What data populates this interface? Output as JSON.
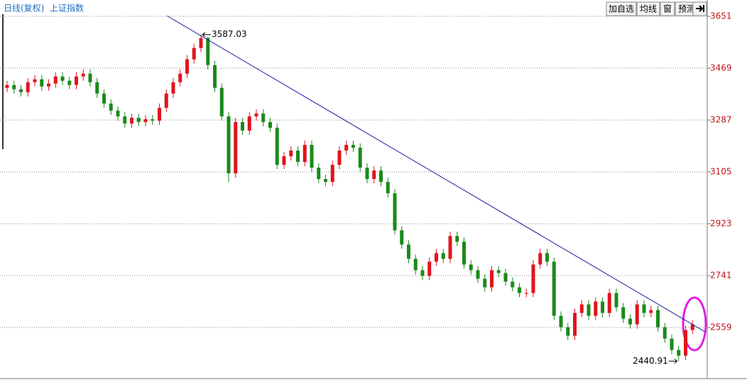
{
  "chart_data": {
    "type": "candlestick",
    "period": "日线(复权)",
    "title": "上证指数",
    "open": [
      3400,
      3410,
      3395,
      3385,
      3420,
      3430,
      3405,
      3415,
      3440,
      3425,
      3410,
      3440,
      3450,
      3420,
      3380,
      3345,
      3320,
      3300,
      3275,
      3295,
      3280,
      3290,
      3285,
      3330,
      3380,
      3420,
      3450,
      3500,
      3540,
      3575,
      3480,
      3400,
      3300,
      3100,
      3280,
      3250,
      3300,
      3310,
      3280,
      3260,
      3130,
      3160,
      3180,
      3140,
      3200,
      3120,
      3080,
      3070,
      3130,
      3180,
      3200,
      3190,
      3120,
      3080,
      3110,
      3070,
      3030,
      2900,
      2850,
      2800,
      2760,
      2740,
      2790,
      2820,
      2800,
      2880,
      2860,
      2780,
      2760,
      2730,
      2700,
      2760,
      2750,
      2720,
      2700,
      2680,
      2680,
      2780,
      2820,
      2790,
      2600,
      2560,
      2530,
      2610,
      2640,
      2600,
      2650,
      2610,
      2680,
      2630,
      2590,
      2570,
      2640,
      2610,
      2620,
      2560,
      2520,
      2480,
      2460,
      2550
    ],
    "high": [
      3425,
      3425,
      3410,
      3435,
      3445,
      3445,
      3430,
      3455,
      3455,
      3440,
      3455,
      3465,
      3465,
      3435,
      3395,
      3360,
      3335,
      3315,
      3310,
      3310,
      3305,
      3305,
      3345,
      3395,
      3435,
      3465,
      3515,
      3555,
      3587.03,
      3580,
      3495,
      3415,
      3315,
      3295,
      3295,
      3315,
      3325,
      3325,
      3295,
      3275,
      3175,
      3195,
      3195,
      3215,
      3215,
      3135,
      3095,
      3145,
      3195,
      3215,
      3215,
      3205,
      3135,
      3125,
      3125,
      3085,
      3045,
      2915,
      2865,
      2815,
      2775,
      2805,
      2835,
      2835,
      2895,
      2895,
      2875,
      2795,
      2775,
      2745,
      2775,
      2775,
      2765,
      2735,
      2715,
      2695,
      2795,
      2835,
      2835,
      2805,
      2615,
      2575,
      2625,
      2655,
      2655,
      2665,
      2665,
      2695,
      2695,
      2645,
      2605,
      2655,
      2655,
      2635,
      2635,
      2575,
      2535,
      2495,
      2565,
      2585
    ],
    "low": [
      3385,
      3380,
      3370,
      3370,
      3405,
      3390,
      3390,
      3400,
      3410,
      3395,
      3395,
      3425,
      3405,
      3365,
      3330,
      3305,
      3285,
      3260,
      3260,
      3265,
      3265,
      3270,
      3270,
      3315,
      3365,
      3405,
      3435,
      3485,
      3525,
      3465,
      3385,
      3285,
      3070,
      3085,
      3235,
      3235,
      3285,
      3265,
      3245,
      3115,
      3115,
      3145,
      3125,
      3125,
      3105,
      3065,
      3055,
      3055,
      3115,
      3165,
      3175,
      3105,
      3065,
      3065,
      3055,
      3015,
      2885,
      2835,
      2785,
      2745,
      2725,
      2725,
      2775,
      2785,
      2785,
      2845,
      2765,
      2745,
      2715,
      2685,
      2685,
      2735,
      2705,
      2685,
      2665,
      2665,
      2665,
      2765,
      2775,
      2585,
      2545,
      2515,
      2515,
      2595,
      2585,
      2585,
      2595,
      2595,
      2615,
      2575,
      2555,
      2555,
      2595,
      2595,
      2545,
      2505,
      2465,
      2440.91,
      2445,
      2535
    ],
    "close": [
      3410,
      3395,
      3385,
      3420,
      3430,
      3405,
      3415,
      3440,
      3425,
      3410,
      3440,
      3450,
      3420,
      3380,
      3345,
      3320,
      3300,
      3275,
      3295,
      3280,
      3290,
      3285,
      3330,
      3380,
      3420,
      3450,
      3500,
      3540,
      3575,
      3480,
      3400,
      3300,
      3100,
      3280,
      3250,
      3300,
      3310,
      3280,
      3260,
      3130,
      3160,
      3180,
      3140,
      3200,
      3120,
      3080,
      3070,
      3130,
      3180,
      3200,
      3190,
      3120,
      3080,
      3110,
      3070,
      3030,
      2900,
      2850,
      2800,
      2760,
      2740,
      2790,
      2820,
      2800,
      2880,
      2860,
      2780,
      2760,
      2730,
      2700,
      2760,
      2750,
      2720,
      2700,
      2680,
      2680,
      2780,
      2820,
      2790,
      2600,
      2560,
      2530,
      2610,
      2640,
      2600,
      2650,
      2610,
      2680,
      2630,
      2590,
      2570,
      2640,
      2610,
      2620,
      2560,
      2520,
      2480,
      2460,
      2550,
      2570
    ],
    "up_color": "#e0141e",
    "down_color": "#1a8a1a",
    "ylim": [
      2387,
      3696
    ],
    "yticks": [
      3651,
      3469,
      3287,
      3105,
      2923,
      2741,
      2559
    ],
    "grid": true,
    "trend_line": {
      "x": [
        23.1,
        100.8
      ],
      "values": [
        3653,
        2544
      ],
      "color": "#1a1aa0"
    }
  },
  "toolbar": [
    "加自选",
    "均线",
    "窗",
    "预测"
  ]
}
